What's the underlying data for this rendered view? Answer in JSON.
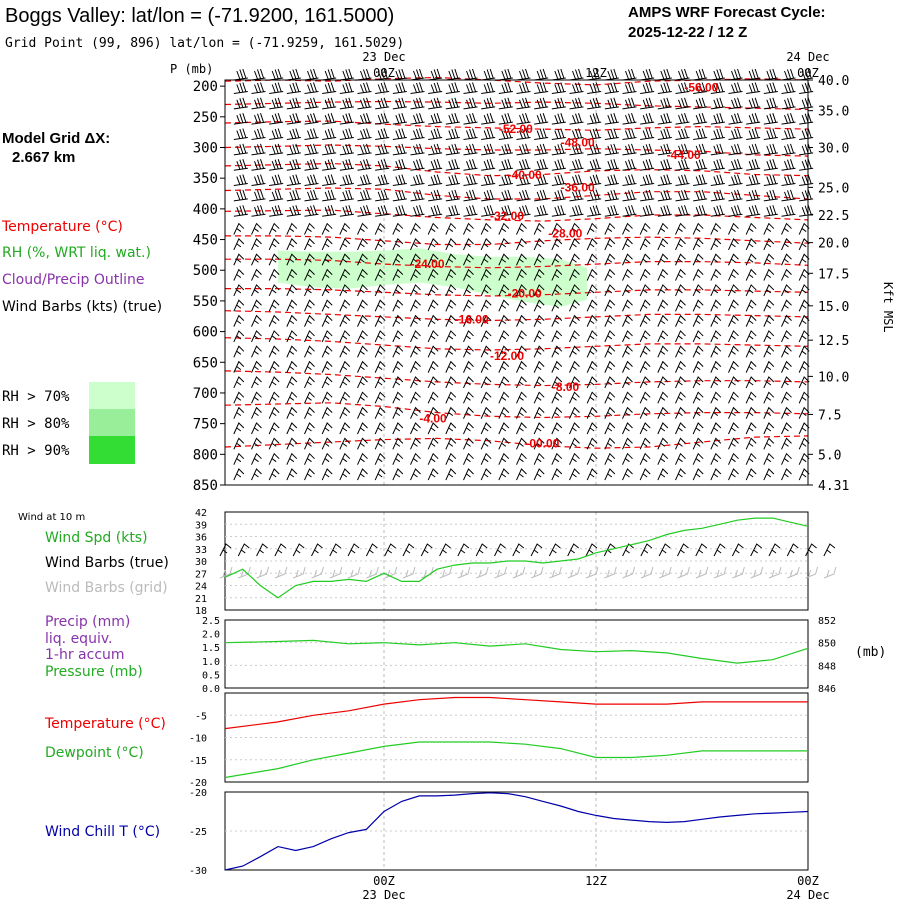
{
  "header": {
    "station_title": "Boggs Valley:  lat/lon = (-71.9200, 161.5000)",
    "grid_point": "Grid Point (99, 896) lat/lon = (-71.9259, 161.5029)",
    "cycle_label": "AMPS WRF Forecast Cycle:",
    "cycle_value": "2025-12-22 / 12  Z"
  },
  "legend": {
    "model_grid_label": "Model Grid ΔX:",
    "model_grid_value": "2.667 km",
    "temperature": "Temperature (°C)",
    "rh": "RH (%, WRT liq. wat.)",
    "cloud": "Cloud/Precip Outline",
    "wind": "Wind Barbs (kts) (true)",
    "rh_levels": [
      "RH > 70%",
      "RH > 80%",
      "RH > 90%"
    ]
  },
  "colors": {
    "temperature": "#ee0000",
    "rh70": "#ccffcc",
    "rh80": "#99ee99",
    "rh90": "#33dd33",
    "cloud": "#8833aa",
    "series_green": "#22cc22",
    "chill": "#0000aa",
    "grid": "#bbbbbb"
  },
  "time_axis": {
    "ticks": [
      {
        "hour": 12,
        "label": "00Z",
        "date": "23 Dec"
      },
      {
        "hour": 24,
        "label": "12Z",
        "date": ""
      },
      {
        "hour": 36,
        "label": "00Z",
        "date": "24 Dec"
      }
    ],
    "start_hour": 3,
    "end_hour": 36
  },
  "chart_data": [
    {
      "type": "contour",
      "name": "upper-air-time-height",
      "yaxis_label": "P (mb)",
      "right_axis_label": "Kft MSL",
      "pressure_levels": [
        200,
        250,
        300,
        350,
        400,
        450,
        500,
        550,
        600,
        650,
        700,
        750,
        800,
        850
      ],
      "ylim": [
        190,
        850
      ],
      "height_ticks": [
        {
          "p": 190,
          "label": "40.0"
        },
        {
          "p": 240,
          "label": "35.0"
        },
        {
          "p": 300,
          "label": "30.0"
        },
        {
          "p": 365,
          "label": "25.0"
        },
        {
          "p": 410,
          "label": "22.5"
        },
        {
          "p": 455,
          "label": "20.0"
        },
        {
          "p": 505,
          "label": "17.5"
        },
        {
          "p": 558,
          "label": "15.0"
        },
        {
          "p": 614,
          "label": "12.5"
        },
        {
          "p": 673,
          "label": "10.0"
        },
        {
          "p": 735,
          "label": "7.5"
        },
        {
          "p": 800,
          "label": "5.0"
        },
        {
          "p": 850,
          "label": "4.31"
        }
      ],
      "isotherm_labels": [
        {
          "t": 29.0,
          "p": 202,
          "label": "-56.00"
        },
        {
          "t": 18.5,
          "p": 270,
          "label": "-52.00"
        },
        {
          "t": 22.0,
          "p": 292,
          "label": "-48.00"
        },
        {
          "t": 28.0,
          "p": 312,
          "label": "-44.00"
        },
        {
          "t": 19.0,
          "p": 345,
          "label": "-40.00"
        },
        {
          "t": 22.0,
          "p": 365,
          "label": "-36.00"
        },
        {
          "t": 18.0,
          "p": 412,
          "label": "-32.00"
        },
        {
          "t": 21.3,
          "p": 440,
          "label": "-28.00"
        },
        {
          "t": 13.5,
          "p": 490,
          "label": "-24.00"
        },
        {
          "t": 19.0,
          "p": 538,
          "label": "-20.00"
        },
        {
          "t": 16.0,
          "p": 580,
          "label": "-16.00"
        },
        {
          "t": 18.0,
          "p": 640,
          "label": "-12.00"
        },
        {
          "t": 21.5,
          "p": 690,
          "label": "-8.00"
        },
        {
          "t": 14.0,
          "p": 742,
          "label": "-4.00"
        },
        {
          "t": 20.0,
          "p": 782,
          "label": "-00.00"
        }
      ],
      "isotherm_lines": [
        {
          "p": [
            192,
            190,
            192,
            188,
            186,
            190,
            195,
            198,
            192,
            190,
            188,
            190
          ]
        },
        {
          "p": [
            230,
            228,
            226,
            225,
            226,
            228,
            226,
            228,
            232,
            234,
            236,
            238
          ]
        },
        {
          "p": [
            260,
            258,
            257,
            262,
            266,
            268,
            270,
            272,
            268,
            266,
            268,
            270
          ]
        },
        {
          "p": [
            300,
            298,
            296,
            298,
            302,
            304,
            304,
            302,
            304,
            306,
            312,
            314
          ]
        },
        {
          "p": [
            330,
            328,
            326,
            330,
            340,
            346,
            344,
            338,
            336,
            338,
            344,
            346
          ]
        },
        {
          "p": [
            370,
            368,
            366,
            368,
            378,
            384,
            384,
            378,
            372,
            372,
            378,
            384
          ]
        },
        {
          "p": [
            404,
            403,
            402,
            408,
            414,
            418,
            420,
            416,
            410,
            410,
            414,
            418
          ]
        },
        {
          "p": [
            444,
            444,
            446,
            452,
            458,
            458,
            452,
            448,
            446,
            448,
            452,
            456
          ]
        },
        {
          "p": [
            482,
            482,
            484,
            490,
            494,
            496,
            494,
            490,
            486,
            486,
            488,
            492
          ]
        },
        {
          "p": [
            530,
            530,
            532,
            536,
            540,
            542,
            540,
            536,
            532,
            532,
            534,
            536
          ]
        },
        {
          "p": [
            566,
            568,
            572,
            576,
            580,
            582,
            580,
            576,
            572,
            572,
            574,
            576
          ]
        },
        {
          "p": [
            610,
            612,
            616,
            622,
            628,
            630,
            628,
            624,
            620,
            620,
            622,
            624
          ]
        },
        {
          "p": [
            664,
            666,
            670,
            676,
            682,
            686,
            688,
            686,
            682,
            680,
            680,
            682
          ]
        },
        {
          "p": [
            720,
            718,
            716,
            722,
            732,
            738,
            740,
            738,
            734,
            732,
            732,
            734
          ]
        },
        {
          "p": [
            788,
            784,
            780,
            776,
            774,
            778,
            786,
            790,
            788,
            780,
            772,
            770
          ]
        }
      ],
      "isotherm_times": [
        3,
        6,
        9,
        12,
        15,
        18,
        21,
        24,
        27,
        30,
        33,
        36
      ],
      "rh70_region": {
        "t_upper": [
          6,
          8,
          10,
          12,
          14,
          16,
          18,
          20,
          22,
          23.5
        ],
        "p_upper": [
          468,
          470,
          470,
          468,
          464,
          474,
          478,
          478,
          482,
          496
        ],
        "p_lower": [
          520,
          528,
          530,
          524,
          520,
          528,
          540,
          552,
          560,
          548
        ]
      },
      "wind_levels": [
        190,
        212,
        237,
        262,
        287,
        312,
        337,
        362,
        387,
        412,
        437,
        462,
        487,
        512,
        537,
        562,
        587,
        612,
        637,
        662,
        687,
        712,
        737,
        762,
        787,
        812,
        837
      ],
      "wind_cols": 33
    },
    {
      "type": "line",
      "name": "surface-wind",
      "title": "Wind at 10 m",
      "series_label": "Wind Spd (kts)",
      "barbs_true_label": "Wind Barbs (true)",
      "barbs_grid_label": "Wind Barbs (grid)",
      "ylim": [
        18,
        42
      ],
      "yticks": [
        18,
        21,
        24,
        27,
        30,
        33,
        36,
        39,
        42
      ],
      "x": [
        3,
        4,
        5,
        6,
        7,
        8,
        9,
        10,
        11,
        12,
        13,
        14,
        15,
        16,
        17,
        18,
        19,
        20,
        21,
        22,
        23,
        24,
        25,
        26,
        27,
        28,
        29,
        30,
        31,
        32,
        33,
        34,
        35,
        36
      ],
      "values": [
        26,
        28,
        24,
        21,
        24,
        25,
        25,
        25.5,
        25,
        27,
        25,
        25,
        28,
        29,
        29.5,
        29.5,
        30,
        30,
        29.5,
        30,
        30.5,
        32,
        33,
        34,
        35,
        36.5,
        37.5,
        38,
        39,
        40,
        40.5,
        40.5,
        39.5,
        38.5
      ]
    },
    {
      "type": "line",
      "name": "precip-pressure",
      "series": [
        {
          "name": "Pressure (mb)",
          "axis": "right"
        },
        {
          "name": "Precip (mm)",
          "axis": "left"
        }
      ],
      "labels": [
        "Precip (mm)",
        "liq. equiv.",
        "1-hr accum",
        "Pressure (mb)"
      ],
      "left_ylim": [
        0,
        2.5
      ],
      "left_ticks": [
        "0.0",
        "0.5",
        "1.0",
        "1.5",
        "2.0",
        "2.5"
      ],
      "right_ylim": [
        846,
        852
      ],
      "right_ticks": [
        "846",
        "848",
        "850",
        "852"
      ],
      "right_unit": "(mb)",
      "x": [
        3,
        6,
        8,
        10,
        12,
        14,
        16,
        18,
        20,
        22,
        24,
        26,
        28,
        30,
        32,
        34,
        36
      ],
      "pressure": [
        850.0,
        850.1,
        850.2,
        849.9,
        850.0,
        849.8,
        850.0,
        849.7,
        849.9,
        849.4,
        849.2,
        849.3,
        849.1,
        848.6,
        848.2,
        848.5,
        849.5
      ]
    },
    {
      "type": "line",
      "name": "temperature-dewpoint",
      "series": [
        {
          "name": "Temperature (°C)",
          "values": [
            -8,
            -6.5,
            -5,
            -4,
            -2.5,
            -1.5,
            -1,
            -1,
            -1.5,
            -2,
            -2.5,
            -2.5,
            -2.5,
            -2,
            -2,
            -2
          ]
        },
        {
          "name": "Dewpoint (°C)",
          "values": [
            -19,
            -17,
            -15,
            -13.5,
            -12,
            -11,
            -11,
            -11,
            -11.5,
            -12.5,
            -14.5,
            -14.5,
            -14,
            -13,
            -13,
            -13
          ]
        }
      ],
      "x": [
        3,
        6,
        8,
        10,
        12,
        14,
        16,
        18,
        20,
        22,
        24,
        26,
        28,
        30,
        33,
        36
      ],
      "ylim": [
        -20,
        0
      ],
      "yticks": [
        "-5",
        "-10",
        "-15",
        "-20"
      ]
    },
    {
      "type": "line",
      "name": "wind-chill",
      "series": [
        {
          "name": "Wind Chill T (°C)"
        }
      ],
      "x": [
        3,
        4,
        5,
        6,
        7,
        8,
        9,
        10,
        11,
        12,
        13,
        14,
        15,
        16,
        17,
        18,
        19,
        20,
        21,
        22,
        23,
        24,
        25,
        26,
        27,
        28,
        29,
        30,
        31,
        32,
        33,
        34,
        35,
        36
      ],
      "values": [
        -30,
        -29.5,
        -28.3,
        -27,
        -27.5,
        -27,
        -26,
        -25.2,
        -24.8,
        -22.5,
        -21.2,
        -20.5,
        -20.5,
        -20.4,
        -20.2,
        -20.1,
        -20.2,
        -20.6,
        -21.2,
        -21.8,
        -22.5,
        -23,
        -23.4,
        -23.6,
        -23.8,
        -23.9,
        -23.8,
        -23.5,
        -23.2,
        -23,
        -22.8,
        -22.7,
        -22.6,
        -22.5
      ],
      "ylim": [
        -30,
        -20
      ],
      "yticks": [
        "-20",
        "-25",
        "-30"
      ]
    }
  ]
}
